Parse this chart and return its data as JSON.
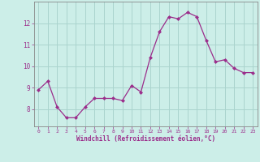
{
  "x": [
    0,
    1,
    2,
    3,
    4,
    5,
    6,
    7,
    8,
    9,
    10,
    11,
    12,
    13,
    14,
    15,
    16,
    17,
    18,
    19,
    20,
    21,
    22,
    23
  ],
  "y": [
    8.9,
    9.3,
    8.1,
    7.6,
    7.6,
    8.1,
    8.5,
    8.5,
    8.5,
    8.4,
    9.1,
    8.8,
    10.4,
    11.6,
    12.3,
    12.2,
    12.5,
    12.3,
    11.2,
    10.2,
    10.3,
    9.9,
    9.7,
    9.7
  ],
  "line_color": "#9b2d8b",
  "marker": "D",
  "marker_size": 2.0,
  "bg_color": "#cceee8",
  "grid_color": "#aad4ce",
  "xlabel": "Windchill (Refroidissement éolien,°C)",
  "xlabel_color": "#9b2d8b",
  "tick_color": "#9b2d8b",
  "axis_color": "#888888",
  "yticks": [
    8,
    9,
    10,
    11,
    12
  ],
  "ylim": [
    7.2,
    13.0
  ],
  "xlim": [
    -0.5,
    23.5
  ],
  "xticks": [
    0,
    1,
    2,
    3,
    4,
    5,
    6,
    7,
    8,
    9,
    10,
    11,
    12,
    13,
    14,
    15,
    16,
    17,
    18,
    19,
    20,
    21,
    22,
    23
  ]
}
